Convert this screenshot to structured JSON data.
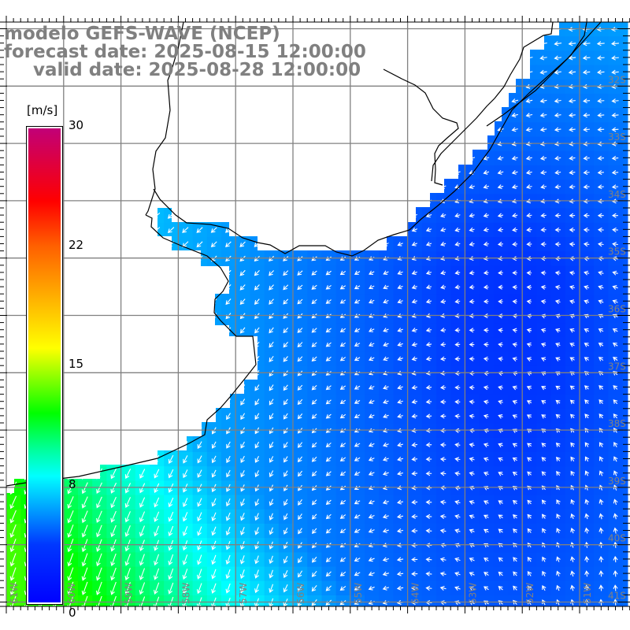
{
  "header": {
    "model": "modelo GEFS-WAVE (NCEP)",
    "forecast": "forecast date: 2025-08-15 12:00:00",
    "valid": "valid date: 2025-08-28 12:00:00"
  },
  "colorbar": {
    "unit": "[m/s]",
    "ticks": [
      "30",
      "22",
      "15",
      "8",
      "0"
    ],
    "tick_values": [
      30,
      22,
      15,
      8,
      0
    ],
    "stops": [
      {
        "value": 0,
        "color": "#0000ff"
      },
      {
        "value": 4,
        "color": "#0038ff"
      },
      {
        "value": 6,
        "color": "#0090ff"
      },
      {
        "value": 7.5,
        "color": "#00d0ff"
      },
      {
        "value": 8.5,
        "color": "#00ffff"
      },
      {
        "value": 10,
        "color": "#00ffa0"
      },
      {
        "value": 12.2,
        "color": "#00ff00"
      },
      {
        "value": 16,
        "color": "#ffff00"
      },
      {
        "value": 22,
        "color": "#ff6000"
      },
      {
        "value": 25,
        "color": "#ff0000"
      },
      {
        "value": 30,
        "color": "#c0007a"
      }
    ]
  },
  "axes": {
    "longitudes": [
      "61W",
      "60W",
      "59W",
      "58W",
      "57W",
      "56W",
      "55W",
      "54W",
      "53W",
      "52W",
      "51W"
    ],
    "latitudes": [
      "32S",
      "33S",
      "34S",
      "35S",
      "36S",
      "37S",
      "38S",
      "39S",
      "40S",
      "41S"
    ]
  },
  "colors": {
    "grid": "#808080",
    "label": "#808080",
    "coast": "#000000",
    "land": "#ffffff",
    "arrow": "#ffffff"
  }
}
